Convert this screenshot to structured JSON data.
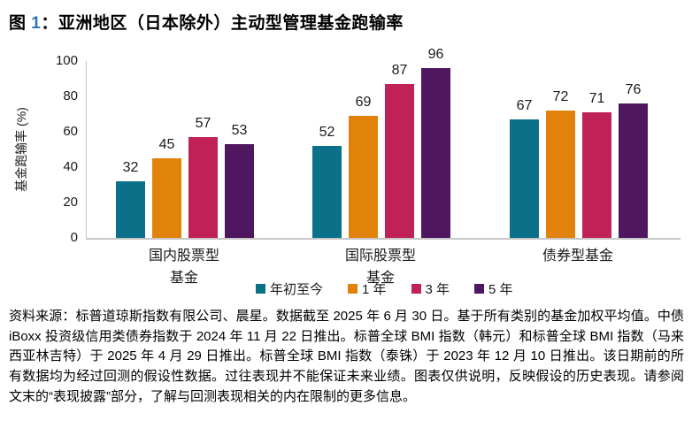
{
  "title": {
    "prefix": "图 ",
    "number": "1",
    "rest": "：亚洲地区（日本除外）主动型管理基金跑输率"
  },
  "accent_blue": "#2e74b5",
  "chart_data": {
    "type": "bar",
    "title": "图 1：亚洲地区（日本除外）主动型管理基金跑输率",
    "ylabel": "基金跑输率 (%)",
    "ylim": [
      0,
      100
    ],
    "yticks": [
      0,
      20,
      40,
      60,
      80,
      100
    ],
    "grid": false,
    "legend_position": "bottom",
    "value_labels": true,
    "categories": [
      "国内股票型\n基金",
      "国际股票型\n基金",
      "债券型基金"
    ],
    "series": [
      {
        "name": "年初至今",
        "color": "#0b7189",
        "values": [
          32,
          52,
          67
        ]
      },
      {
        "name": "1 年",
        "color": "#e1830a",
        "values": [
          45,
          69,
          72
        ]
      },
      {
        "name": "3 年",
        "color": "#c02257",
        "values": [
          57,
          87,
          71
        ]
      },
      {
        "name": "5 年",
        "color": "#4e1760",
        "values": [
          53,
          96,
          76
        ]
      }
    ]
  },
  "footer": {
    "text": "资料来源：标普道琼斯指数有限公司、晨星。数据截至 2025 年 6 月 30 日。基于所有类别的基金加权平均值。中债 iBoxx 投资级信用类债券指数于 2024 年 11 月 22 日推出。标普全球 BMI 指数（韩元）和标普全球 BMI 指数（马来西亚林吉特）于 2025 年 4 月 29 日推出。标普全球 BMI 指数（泰铢）于 2023 年 12 月 10 日推出。该日期前的所有数据均为经过回测的假设性数据。过往表现并不能保证未来业绩。图表仅供说明，反映假设的历史表现。请参阅文末的“表现披露”部分，了解与回测表现相关的内在限制的更多信息。"
  }
}
